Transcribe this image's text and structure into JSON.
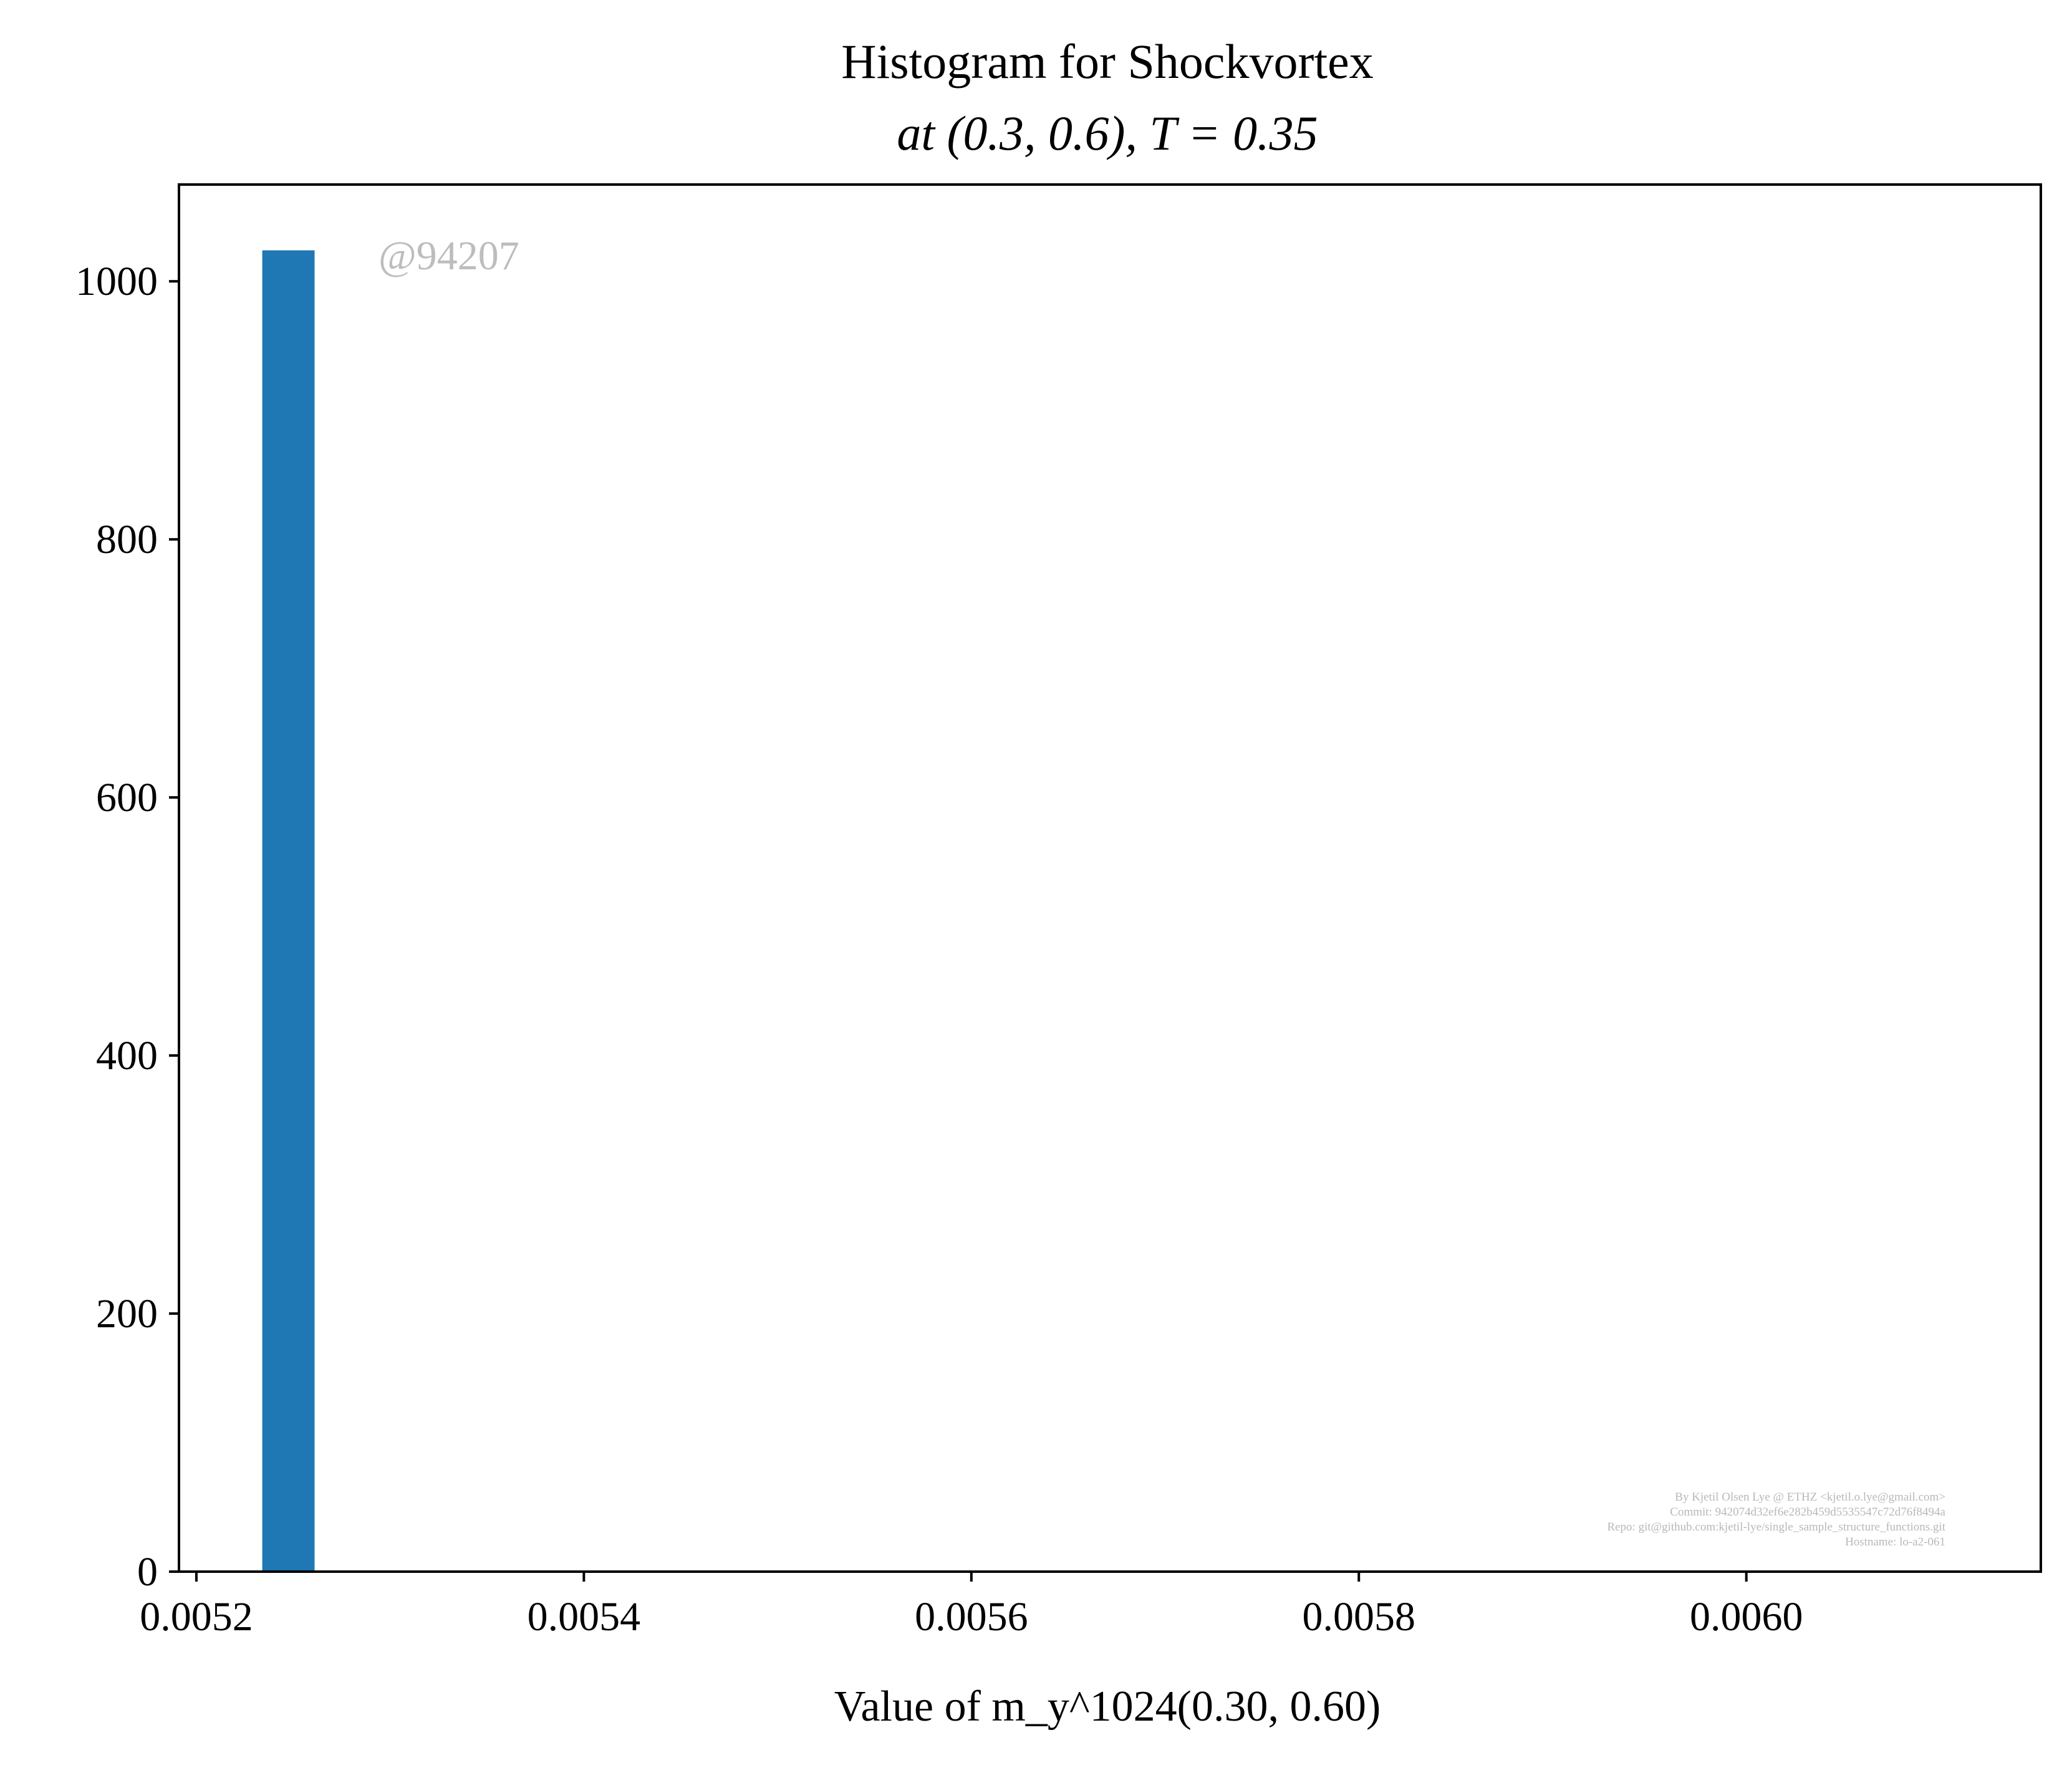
{
  "chart_data": {
    "type": "bar",
    "title_line1": "Histogram for Shockvortex",
    "title_line2": "at (0.3, 0.6), T = 0.35",
    "xlabel": "Value of m_y^1024(0.30, 0.60)",
    "ylabel": "",
    "xlim": [
      0.005191,
      0.006152
    ],
    "ylim": [
      0,
      1075
    ],
    "x_ticks": [
      0.0052,
      0.0054,
      0.0056,
      0.0058,
      0.006
    ],
    "x_tick_labels": [
      "0.0052",
      "0.0054",
      "0.0056",
      "0.0058",
      "0.0060"
    ],
    "y_ticks": [
      0,
      200,
      400,
      600,
      800,
      1000
    ],
    "y_tick_labels": [
      "0",
      "200",
      "400",
      "600",
      "800",
      "1000"
    ],
    "bars": [
      {
        "x0": 0.005234,
        "x1": 0.005261,
        "value": 1024
      }
    ],
    "bar_color": "#1f77b4",
    "grid": false,
    "watermark": "@94207",
    "credits": [
      "By Kjetil Olsen Lye @ ETHZ <kjetil.o.lye@gmail.com>",
      "Commit: 942074d32ef6e282b459d5535547c72d76f8494a",
      "Repo: git@github.com:kjetil-lye/single_sample_structure_functions.git",
      "Hostname: lo-a2-061"
    ]
  }
}
